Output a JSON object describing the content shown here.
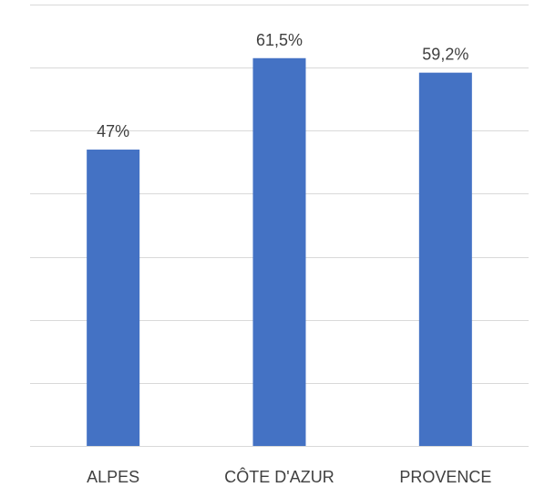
{
  "chart_data": {
    "type": "bar",
    "categories": [
      "ALPES",
      "CÔTE D'AZUR",
      "PROVENCE"
    ],
    "values": [
      47,
      61.5,
      59.2
    ],
    "data_labels": [
      "47%",
      "61,5%",
      "59,2%"
    ],
    "ylim": [
      0,
      70
    ],
    "grid": true,
    "gridline_count": 7,
    "bar_color": "#4472c4",
    "legend": "none"
  }
}
